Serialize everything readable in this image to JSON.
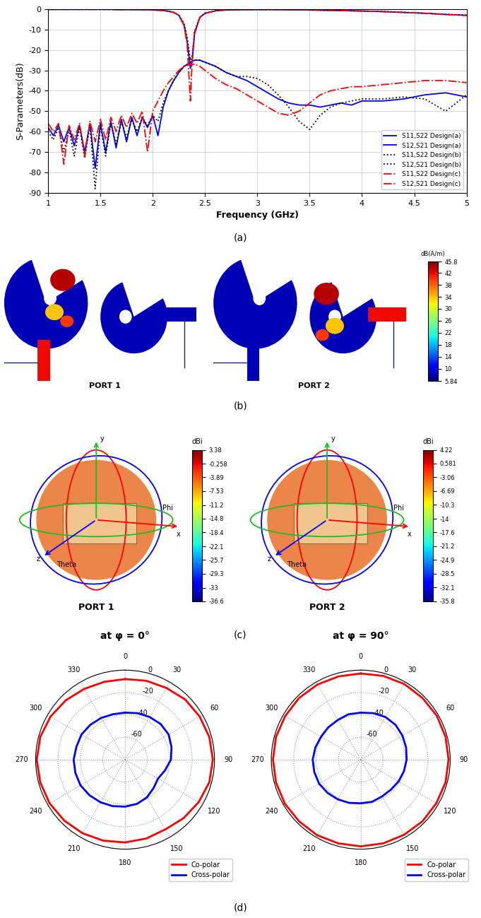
{
  "chart_data": [
    {
      "type": "line",
      "x_label": "Frequency (GHz)",
      "y_label": "S-Parameters(dB)",
      "x": [
        1.0,
        1.05,
        1.1,
        1.15,
        1.2,
        1.25,
        1.3,
        1.35,
        1.4,
        1.45,
        1.5,
        1.55,
        1.6,
        1.65,
        1.7,
        1.75,
        1.8,
        1.85,
        1.9,
        1.95,
        2.0,
        2.05,
        2.1,
        2.15,
        2.2,
        2.25,
        2.3,
        2.33,
        2.36,
        2.38,
        2.4,
        2.45,
        2.5,
        2.6,
        2.7,
        2.8,
        2.9,
        3.0,
        3.1,
        3.2,
        3.3,
        3.4,
        3.5,
        3.6,
        3.7,
        3.8,
        3.9,
        4.0,
        4.2,
        4.4,
        4.6,
        4.8,
        5.0
      ],
      "xlim": [
        1,
        5
      ],
      "xticks": [
        1,
        1.5,
        2,
        2.5,
        3,
        3.5,
        4,
        4.5,
        5
      ],
      "ylim": [
        -90,
        0
      ],
      "yticks": [
        -90,
        -80,
        -70,
        -60,
        -50,
        -40,
        -30,
        -20,
        -10,
        0
      ],
      "grid": true,
      "legend": "lower right",
      "series": [
        {
          "name": "S11,S22 Design(a)",
          "color": "#0000ff",
          "line_style": "solid",
          "values": [
            -0.1,
            -0.1,
            -0.1,
            -0.1,
            -0.1,
            -0.1,
            -0.1,
            -0.1,
            -0.1,
            -0.1,
            -0.1,
            -0.1,
            -0.1,
            -0.2,
            -0.2,
            -0.2,
            -0.2,
            -0.2,
            -0.3,
            -0.3,
            -0.4,
            -0.5,
            -0.7,
            -1.0,
            -1.6,
            -3,
            -8,
            -16,
            -29,
            -24,
            -12,
            -4,
            -2,
            -0.8,
            -0.4,
            -0.3,
            -0.2,
            -0.2,
            -0.2,
            -0.2,
            -0.3,
            -0.3,
            -0.4,
            -0.5,
            -0.6,
            -0.7,
            -0.8,
            -0.9,
            -1.2,
            -1.6,
            -2.0,
            -2.6,
            -3.0
          ]
        },
        {
          "name": "S12,S21 Design(a)",
          "color": "#0000ff",
          "line_style": "solid",
          "values": [
            -58,
            -62,
            -57,
            -65,
            -58,
            -67,
            -57,
            -70,
            -56,
            -78,
            -56,
            -70,
            -55,
            -68,
            -54,
            -65,
            -53,
            -62,
            -53,
            -58,
            -52,
            -62,
            -48,
            -40,
            -35,
            -31,
            -28,
            -27,
            -26,
            -25.5,
            -25,
            -25,
            -26,
            -28,
            -31,
            -33,
            -35,
            -38,
            -41,
            -44,
            -46,
            -47,
            -47,
            -48,
            -47,
            -46,
            -47,
            -45,
            -45,
            -44,
            -42,
            -41,
            -43
          ]
        },
        {
          "name": "S11,S22 Design(b)",
          "color": "#000000",
          "line_style": "dotted",
          "values": [
            -0.1,
            -0.1,
            -0.1,
            -0.1,
            -0.1,
            -0.1,
            -0.1,
            -0.1,
            -0.1,
            -0.1,
            -0.1,
            -0.1,
            -0.1,
            -0.2,
            -0.2,
            -0.2,
            -0.2,
            -0.2,
            -0.3,
            -0.3,
            -0.4,
            -0.5,
            -0.7,
            -1.0,
            -1.5,
            -3,
            -7,
            -14,
            -25,
            -22,
            -11,
            -4,
            -2,
            -0.8,
            -0.4,
            -0.3,
            -0.2,
            -0.2,
            -0.2,
            -0.2,
            -0.3,
            -0.3,
            -0.4,
            -0.5,
            -0.6,
            -0.7,
            -0.8,
            -0.9,
            -1.1,
            -1.5,
            -2.0,
            -2.5,
            -2.9
          ]
        },
        {
          "name": "S12,S21 Design(b)",
          "color": "#000000",
          "line_style": "dotted",
          "values": [
            -60,
            -64,
            -58,
            -70,
            -59,
            -72,
            -58,
            -73,
            -57,
            -88,
            -57,
            -72,
            -56,
            -66,
            -55,
            -63,
            -54,
            -60,
            -53,
            -57,
            -52,
            -55,
            -46,
            -40,
            -35,
            -31,
            -28,
            -27,
            -26,
            -25.5,
            -25,
            -25,
            -26,
            -28,
            -31,
            -33,
            -33,
            -34,
            -37,
            -42,
            -48,
            -55,
            -59,
            -52,
            -48,
            -46,
            -45,
            -44,
            -44,
            -43,
            -44,
            -50,
            -42
          ]
        },
        {
          "name": "S11,S22 Design(c)",
          "color": "#ff0000",
          "line_style": "dashdot",
          "values": [
            -0.1,
            -0.1,
            -0.1,
            -0.1,
            -0.1,
            -0.1,
            -0.1,
            -0.1,
            -0.1,
            -0.1,
            -0.1,
            -0.1,
            -0.1,
            -0.2,
            -0.2,
            -0.2,
            -0.2,
            -0.2,
            -0.3,
            -0.3,
            -0.4,
            -0.5,
            -0.7,
            -1.0,
            -1.6,
            -3,
            -8,
            -18,
            -45,
            -22,
            -11,
            -4,
            -2,
            -0.8,
            -0.4,
            -0.3,
            -0.2,
            -0.2,
            -0.2,
            -0.2,
            -0.3,
            -0.3,
            -0.4,
            -0.5,
            -0.6,
            -0.7,
            -0.8,
            -0.9,
            -1.2,
            -1.6,
            -2.0,
            -2.6,
            -3.1
          ]
        },
        {
          "name": "S12,S21 Design(c)",
          "color": "#ff0000",
          "line_style": "dashdot",
          "values": [
            -56,
            -60,
            -56,
            -76,
            -57,
            -64,
            -56,
            -72,
            -55,
            -65,
            -54,
            -64,
            -53,
            -60,
            -52,
            -58,
            -51,
            -56,
            -50,
            -70,
            -50,
            -45,
            -40,
            -36,
            -33,
            -30,
            -28,
            -27.5,
            -27,
            -27,
            -27,
            -28,
            -30,
            -34,
            -37,
            -39,
            -42,
            -45,
            -48,
            -51,
            -52,
            -50,
            -46,
            -42,
            -40,
            -39,
            -38,
            -38,
            -37,
            -36,
            -35,
            -35,
            -36
          ]
        }
      ]
    },
    {
      "type": "polar",
      "title": "at φ = 0°",
      "x": [
        0,
        15,
        30,
        45,
        60,
        75,
        90,
        105,
        120,
        135,
        150,
        165,
        180,
        195,
        210,
        225,
        240,
        255,
        270,
        285,
        300,
        315,
        330,
        345
      ],
      "xticks": [
        0,
        30,
        60,
        90,
        120,
        150,
        180,
        210,
        240,
        270,
        300,
        330
      ],
      "ylim": [
        -80,
        0
      ],
      "yticks": [
        -60,
        -40,
        -20,
        0
      ],
      "grid": true,
      "legend": "lower right",
      "series": [
        {
          "name": "Co-polar",
          "color": "#ff0000",
          "values": [
            -8,
            -7,
            -6,
            -4,
            -3,
            -2,
            -1.5,
            -2,
            -4,
            -6,
            -8,
            -7,
            -6,
            -5,
            -4,
            -3,
            -2,
            -1.5,
            -1,
            -1.5,
            -3,
            -5,
            -7,
            -8
          ]
        },
        {
          "name": "Cross-polar",
          "color": "#0000ff",
          "values": [
            -38,
            -37,
            -36,
            -35,
            -35,
            -37,
            -39,
            -43,
            -46,
            -44,
            -41,
            -39,
            -38,
            -37,
            -36,
            -35,
            -34,
            -34,
            -34,
            -35,
            -35,
            -36,
            -37,
            -38
          ]
        }
      ]
    },
    {
      "type": "polar",
      "title": "at φ = 90°",
      "x": [
        0,
        15,
        30,
        45,
        60,
        75,
        90,
        105,
        120,
        135,
        150,
        165,
        180,
        195,
        210,
        225,
        240,
        255,
        270,
        285,
        300,
        315,
        330,
        345
      ],
      "xticks": [
        0,
        30,
        60,
        90,
        120,
        150,
        180,
        210,
        240,
        270,
        300,
        330
      ],
      "ylim": [
        -80,
        0
      ],
      "yticks": [
        -60,
        -40,
        -20,
        0
      ],
      "grid": true,
      "legend": "lower right",
      "series": [
        {
          "name": "Co-polar",
          "color": "#ff0000",
          "values": [
            -3,
            -2.5,
            -2,
            -2,
            -1.5,
            -1.5,
            -1.5,
            -1.5,
            -2,
            -2,
            -2.5,
            -2.5,
            -2.5,
            -2.5,
            -2,
            -2,
            -1.5,
            -1.5,
            -1.5,
            -1.5,
            -2,
            -2,
            -2.5,
            -3
          ]
        },
        {
          "name": "Cross-polar",
          "color": "#0000ff",
          "values": [
            -38,
            -37,
            -36,
            -36,
            -37,
            -38,
            -39,
            -40,
            -41,
            -42,
            -42,
            -41,
            -41,
            -40,
            -39,
            -38,
            -37,
            -37,
            -37,
            -38,
            -39,
            -39,
            -39,
            -38
          ]
        }
      ]
    }
  ],
  "captions": [
    "(a)",
    "(b)",
    "(c)",
    "(d)"
  ],
  "current_distribution": {
    "ports": [
      "PORT 1",
      "PORT 2"
    ],
    "colorbar_title": "dB(A/m)",
    "colorbar": {
      "range": [
        5.84,
        45.8
      ],
      "ticks": [
        45.8,
        42,
        38,
        34,
        30,
        26,
        22,
        18,
        14,
        10,
        5.84
      ]
    }
  },
  "radiation_pattern_3d": {
    "colorbar_title": "dBi",
    "axis_labels": [
      "x",
      "y",
      "z"
    ],
    "angle_labels": [
      "Theta",
      "Phi"
    ],
    "ports": [
      {
        "label": "PORT 1",
        "colorbar": {
          "range": [
            -36.6,
            3.38
          ],
          "ticks": [
            3.38,
            -0.258,
            -3.89,
            -7.53,
            -11.2,
            -14.8,
            -18.4,
            -22.1,
            -25.7,
            -29.3,
            -33,
            -36.6
          ]
        }
      },
      {
        "label": "PORT 2",
        "colorbar": {
          "range": [
            -35.8,
            4.22
          ],
          "ticks": [
            4.22,
            0.581,
            -3.06,
            -6.69,
            -10.3,
            -14,
            -17.6,
            -21.2,
            -24.9,
            -28.5,
            -32.1,
            -35.8
          ]
        }
      }
    ]
  }
}
